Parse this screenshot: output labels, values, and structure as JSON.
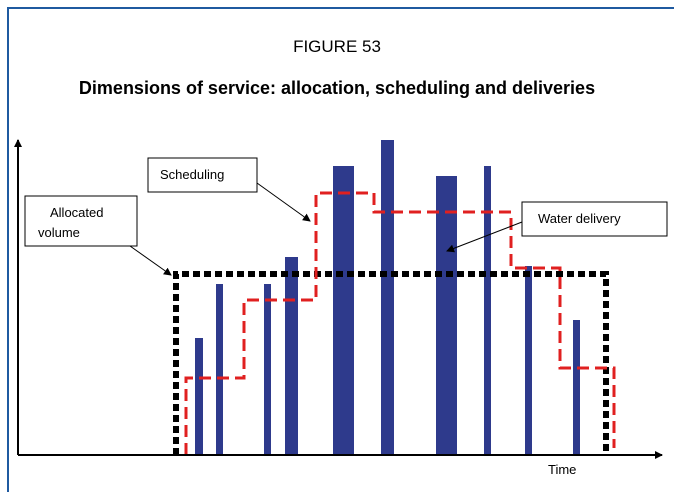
{
  "figure": {
    "label": "FIGURE 53",
    "title": "Dimensions of service: allocation, scheduling and deliveries",
    "annotations": {
      "scheduling": "Scheduling",
      "allocated": [
        "Allocated",
        "volume"
      ],
      "delivery": "Water delivery"
    },
    "x_axis_label": "Time"
  }
}
